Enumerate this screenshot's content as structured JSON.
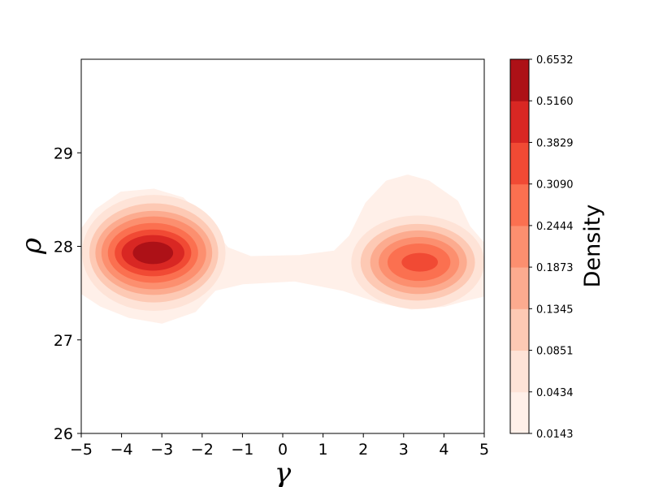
{
  "chart_data": {
    "type": "contourf",
    "title": "",
    "xlabel": "γ",
    "ylabel": "ρ",
    "xlim": [
      -5,
      5
    ],
    "ylim": [
      26,
      30
    ],
    "x_ticks": [
      -5,
      -4,
      -3,
      -2,
      -1,
      0,
      1,
      2,
      3,
      4,
      5
    ],
    "x_tick_labels": [
      "−5",
      "−4",
      "−3",
      "−2",
      "−1",
      "0",
      "1",
      "2",
      "3",
      "4",
      "5"
    ],
    "y_ticks": [
      26,
      27,
      28,
      29
    ],
    "y_tick_labels": [
      "26",
      "27",
      "28",
      "29"
    ],
    "colormap": "Reds",
    "colorbar": {
      "label": "Density",
      "levels": [
        0.0143,
        0.0434,
        0.0851,
        0.1345,
        0.1873,
        0.2444,
        0.309,
        0.3829,
        0.516,
        0.6532
      ],
      "tick_labels": [
        "0.0143",
        "0.0434",
        "0.0851",
        "0.1345",
        "0.1873",
        "0.2444",
        "0.3090",
        "0.3829",
        "0.5160",
        "0.6532"
      ],
      "colors": [
        "#fff0e9",
        "#fee3d7",
        "#fdc9b4",
        "#fcab8f",
        "#fc8f6f",
        "#fb7050",
        "#f14a34",
        "#d92723",
        "#ad1117"
      ]
    },
    "peaks": [
      {
        "gamma": -3.2,
        "rho": 27.93,
        "density": 0.6532
      },
      {
        "gamma": 3.35,
        "rho": 27.83,
        "density": 0.4
      }
    ]
  }
}
